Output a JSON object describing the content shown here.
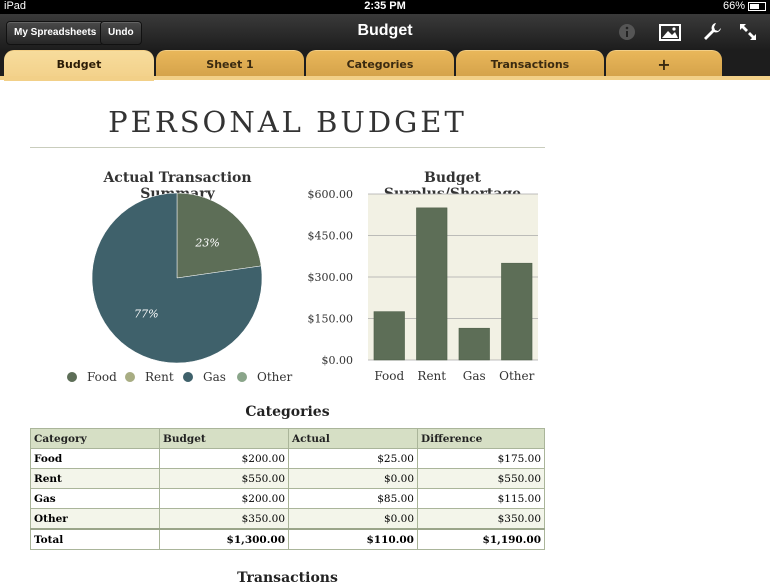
{
  "status_bar": {
    "device": "iPad",
    "time": "2:35 PM",
    "battery": "66%",
    "battery_level": 0.66
  },
  "toolbar": {
    "my_spreadsheets": "My Spreadsheets",
    "undo": "Undo",
    "title": "Budget"
  },
  "tabs": [
    {
      "label": "Budget",
      "active": true
    },
    {
      "label": "Sheet 1",
      "active": false
    },
    {
      "label": "Categories",
      "active": false
    },
    {
      "label": "Transactions",
      "active": false
    },
    {
      "label": "+",
      "active": false
    }
  ],
  "document": {
    "title": "PERSONAL BUDGET"
  },
  "colors": {
    "food": "#5d6e57",
    "rent": "#a8ad83",
    "gas": "#3f616b",
    "other": "#8aa58a",
    "bar": "#5d6e57",
    "plot_bg": "#f2f1e4"
  },
  "chart_data": [
    {
      "type": "pie",
      "title": "Actual Transaction Summary",
      "categories": [
        "Food",
        "Rent",
        "Gas",
        "Other"
      ],
      "values": [
        25,
        0,
        85,
        0
      ],
      "slice_labels": [
        "23%",
        "",
        "77%",
        ""
      ],
      "legend": "bottom"
    },
    {
      "type": "bar",
      "title": "Budget Surplus/Shortage",
      "categories": [
        "Food",
        "Rent",
        "Gas",
        "Other"
      ],
      "values": [
        175,
        550,
        115,
        350
      ],
      "ylim": [
        0,
        600
      ],
      "yticks": [
        "$0.00",
        "$150.00",
        "$300.00",
        "$450.00",
        "$600.00"
      ],
      "ytick_values": [
        0,
        150,
        300,
        450,
        600
      ],
      "grid": true
    }
  ],
  "table": {
    "title": "Categories",
    "headers": [
      "Category",
      "Budget",
      "Actual",
      "Difference"
    ],
    "rows": [
      [
        "Food",
        "$200.00",
        "$25.00",
        "$175.00"
      ],
      [
        "Rent",
        "$550.00",
        "$0.00",
        "$550.00"
      ],
      [
        "Gas",
        "$200.00",
        "$85.00",
        "$115.00"
      ],
      [
        "Other",
        "$350.00",
        "$0.00",
        "$350.00"
      ]
    ],
    "total": [
      "Total",
      "$1,300.00",
      "$110.00",
      "$1,190.00"
    ]
  },
  "next_section": "Transactions"
}
